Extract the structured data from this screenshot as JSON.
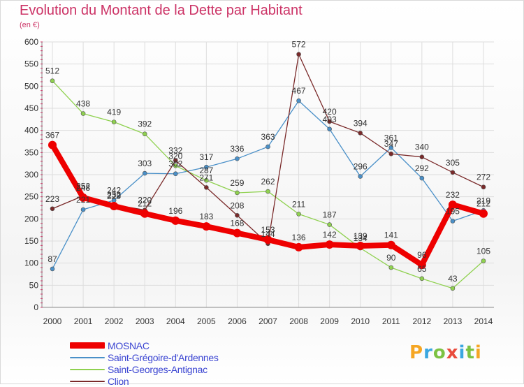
{
  "header": {
    "title": "Evolution du Montant de la Dette par Habitant",
    "unit": "(en €)"
  },
  "brand": {
    "letters": [
      "P",
      "r",
      "o",
      "x",
      "i",
      "t",
      "i"
    ],
    "colors": [
      "#f5a623",
      "#3ba7e0",
      "#7cc242",
      "#e94b3c",
      "#3ba7e0",
      "#7cc242",
      "#f5a623"
    ]
  },
  "chart_data": {
    "type": "line",
    "title": "Evolution du Montant de la Dette par Habitant",
    "xlabel": "",
    "ylabel": "(en €)",
    "categories": [
      "2000",
      "2001",
      "2002",
      "2003",
      "2004",
      "2005",
      "2006",
      "2007",
      "2008",
      "2009",
      "2010",
      "2011",
      "2012",
      "2013",
      "2014"
    ],
    "ylim": [
      0,
      600
    ],
    "yticks": [
      0,
      50,
      100,
      150,
      200,
      250,
      300,
      350,
      400,
      450,
      500,
      550,
      600
    ],
    "grid": true,
    "legend_position": "bottom-left",
    "series": [
      {
        "name": "MOSNAC",
        "color": "#ee0000",
        "values": [
          367,
          248,
          229,
          212,
          196,
          183,
          168,
          153,
          136,
          142,
          139,
          141,
          96,
          232,
          212
        ]
      },
      {
        "name": "Saint-Grégoire-d'Ardennes",
        "color": "#4a90c8",
        "values": [
          87,
          221,
          242,
          303,
          302,
          317,
          336,
          363,
          467,
          403,
          296,
          361,
          292,
          195,
          219
        ]
      },
      {
        "name": "Saint-Georges-Antignac",
        "color": "#8fd14f",
        "values": [
          512,
          438,
          419,
          392,
          320,
          287,
          259,
          262,
          211,
          187,
          134,
          90,
          65,
          43,
          105
        ]
      },
      {
        "name": "Clion",
        "color": "#7a2a2a",
        "values": [
          223,
          252,
          232,
          220,
          332,
          271,
          208,
          144,
          572,
          420,
          394,
          347,
          340,
          305,
          272
        ]
      }
    ]
  }
}
